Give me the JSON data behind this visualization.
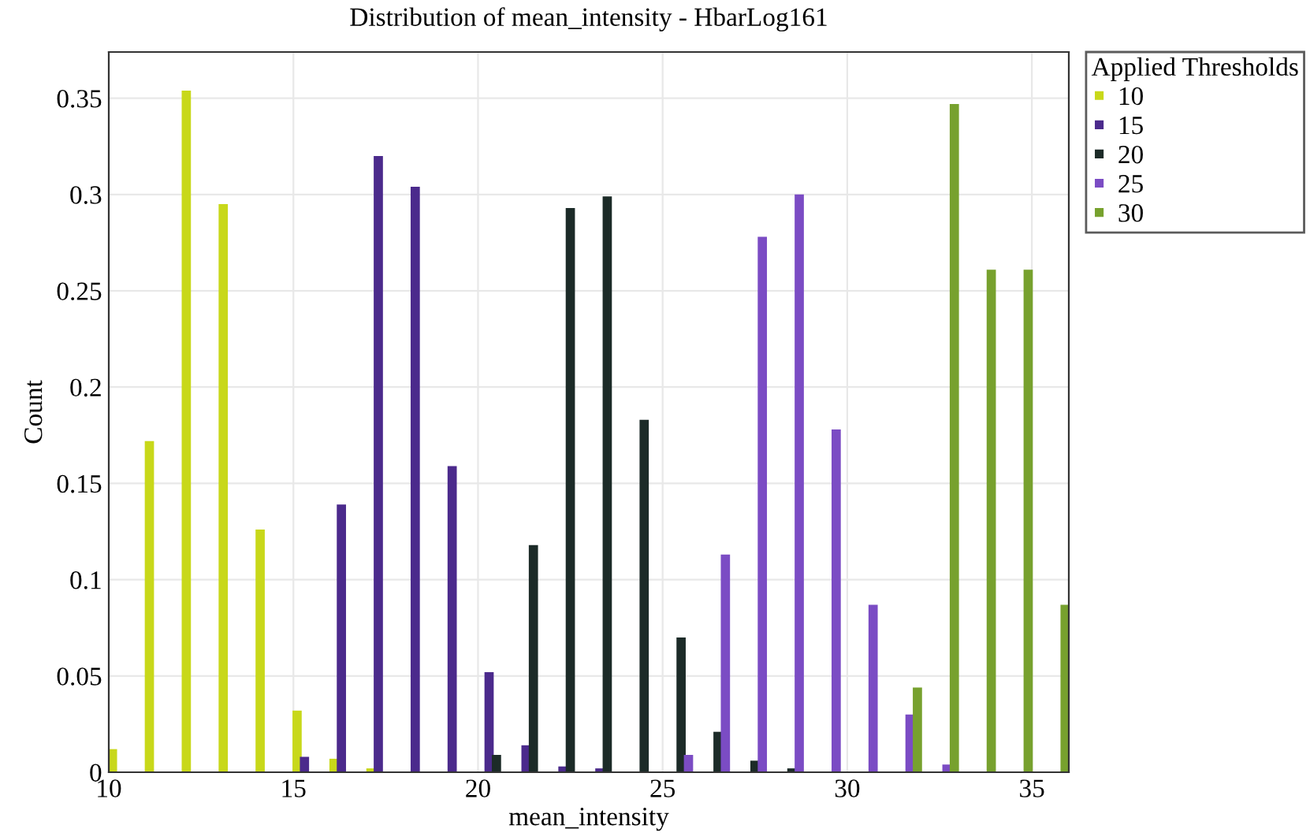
{
  "chart_data": {
    "type": "bar",
    "title": "Distribution of mean_intensity - HbarLog161",
    "xlabel": "mean_intensity",
    "ylabel": "Count",
    "legend_title": "Applied Thresholds",
    "series": [
      {
        "name": "10",
        "color": "#c8d81a",
        "x": [
          10.1,
          11.1,
          12.1,
          13.1,
          14.1,
          15.1,
          16.1,
          17.1
        ],
        "values": [
          0.012,
          0.172,
          0.354,
          0.295,
          0.126,
          0.032,
          0.007,
          0.002
        ]
      },
      {
        "name": "15",
        "color": "#4b2a8c",
        "x": [
          15.3,
          16.3,
          17.3,
          18.3,
          19.3,
          20.3,
          21.3,
          22.3,
          23.3
        ],
        "values": [
          0.008,
          0.139,
          0.32,
          0.304,
          0.159,
          0.052,
          0.014,
          0.003,
          0.002
        ]
      },
      {
        "name": "20",
        "color": "#1c2b28",
        "x": [
          20.5,
          21.5,
          22.5,
          23.5,
          24.5,
          25.5,
          26.5,
          27.5,
          28.5
        ],
        "values": [
          0.009,
          0.118,
          0.293,
          0.299,
          0.183,
          0.07,
          0.021,
          0.006,
          0.002
        ]
      },
      {
        "name": "25",
        "color": "#7b4cc4",
        "x": [
          25.7,
          26.7,
          27.7,
          28.7,
          29.7,
          30.7,
          31.7,
          32.7
        ],
        "values": [
          0.009,
          0.113,
          0.278,
          0.3,
          0.178,
          0.087,
          0.03,
          0.004
        ]
      },
      {
        "name": "30",
        "color": "#77a12e",
        "x": [
          31.9,
          32.9,
          33.9,
          34.9,
          35.9
        ],
        "values": [
          0.044,
          0.347,
          0.261,
          0.261,
          0.087
        ]
      }
    ],
    "xlim": [
      10,
      36
    ],
    "ylim": [
      0,
      0.374
    ],
    "xticks": [
      10,
      15,
      20,
      25,
      30,
      35
    ],
    "yticks": [
      0,
      0.05,
      0.1,
      0.15,
      0.2,
      0.25,
      0.3,
      0.35
    ],
    "grid": true,
    "legend": "top right"
  }
}
